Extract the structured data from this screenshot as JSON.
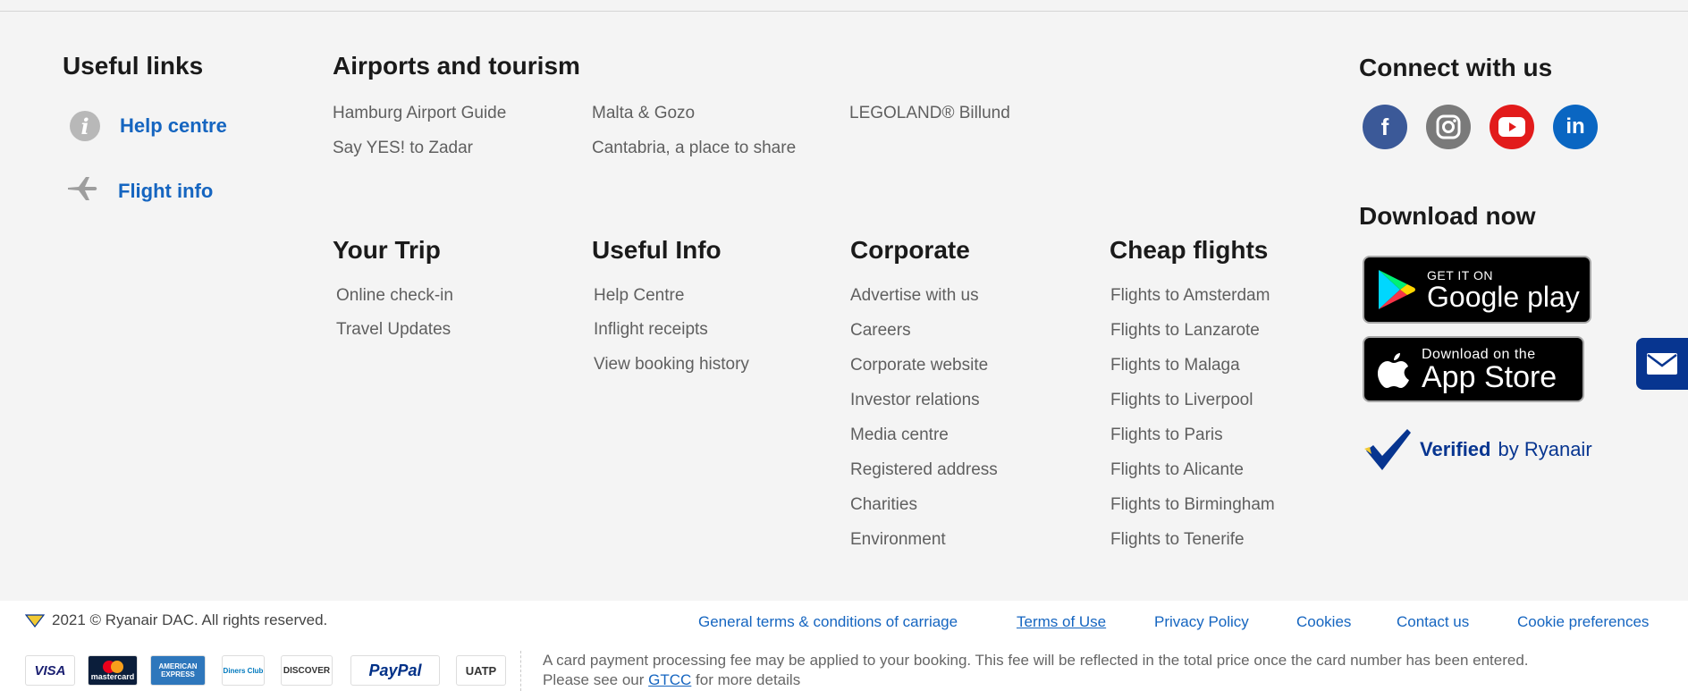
{
  "useful_links": {
    "title": "Useful links",
    "help": "Help centre",
    "flight_info": "Flight info"
  },
  "airports": {
    "title": "Airports and tourism",
    "items": [
      "Hamburg Airport Guide",
      "Say YES! to Zadar"
    ]
  },
  "airports2": {
    "items": [
      "Malta & Gozo",
      "Cantabria, a place to share"
    ]
  },
  "legoland": {
    "label": "LEGOLAND® Billund"
  },
  "your_trip": {
    "title": "Your Trip",
    "items": [
      "Online check-in",
      "Travel Updates"
    ]
  },
  "useful_info": {
    "title": "Useful Info",
    "items": [
      "Help Centre",
      "Inflight receipts",
      "View booking history"
    ]
  },
  "corporate": {
    "title": "Corporate",
    "items": [
      "Advertise with us",
      "Careers",
      "Corporate website",
      "Investor relations",
      "Media centre",
      "Registered address",
      "Charities",
      "Environment"
    ]
  },
  "cheap_flights": {
    "title": "Cheap flights",
    "items": [
      "Flights to Amsterdam",
      "Flights to Lanzarote",
      "Flights to Malaga",
      "Flights to Liverpool",
      "Flights to Paris",
      "Flights to Alicante",
      "Flights to Birmingham",
      "Flights to Tenerife"
    ]
  },
  "connect": {
    "title": "Connect with us",
    "facebook": "f",
    "linkedin": "in"
  },
  "download": {
    "title": "Download now",
    "google_small": "GET IT ON",
    "google_big": "Google play",
    "apple_small": "Download on the",
    "apple_big": "App Store",
    "verified_strong": "Verified",
    "verified_rest": "by Ryanair"
  },
  "footer": {
    "copyright": "2021 © Ryanair DAC. All rights reserved.",
    "links": [
      "General terms & conditions of carriage",
      "Terms of Use",
      "Privacy Policy",
      "Cookies",
      "Contact us",
      "Cookie preferences"
    ],
    "cards": [
      "VISA",
      "mastercard",
      "AMERICAN EXPRESS",
      "Diners Club",
      "DISCOVER",
      "PayPal",
      "UATP"
    ],
    "note_line1": "A card payment processing fee may be applied to your booking. This fee will be reflected in the total price once the card number has been entered.",
    "note_pre": "Please see our ",
    "note_link": "GTCC",
    "note_post": " for more details"
  },
  "colors": {
    "brand_blue": "#073590",
    "link_blue": "#1565c0",
    "facebook": "#3b5998",
    "instagram": "#7a7a7a",
    "youtube": "#e21b1b",
    "linkedin": "#0a66c2"
  }
}
